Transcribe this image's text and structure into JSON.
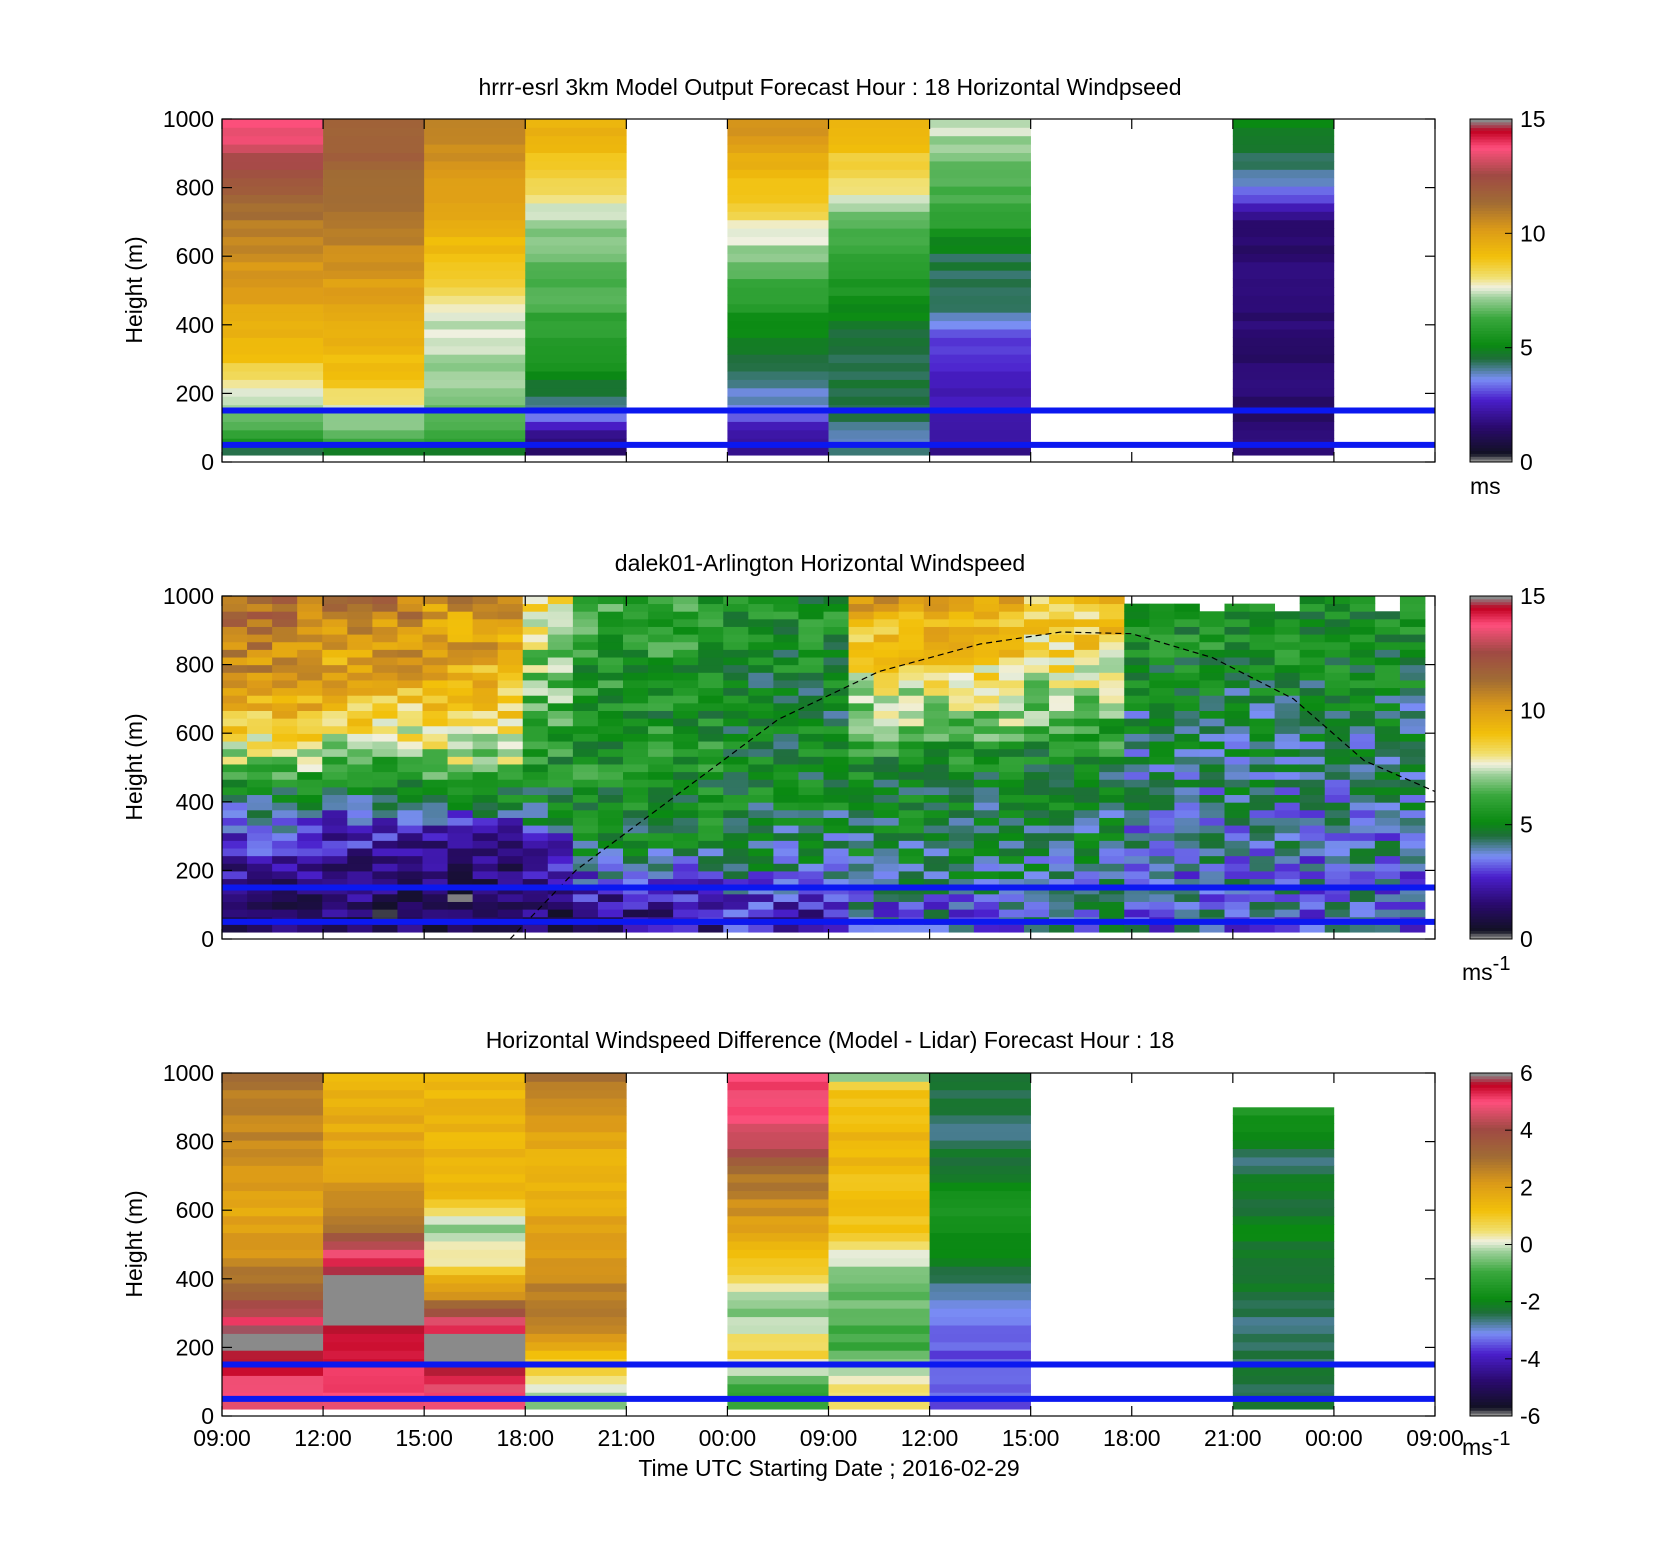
{
  "x_ticks": [
    "09:00",
    "12:00",
    "15:00",
    "18:00",
    "21:00",
    "00:00",
    "09:00",
    "12:00",
    "15:00",
    "18:00",
    "21:00",
    "00:00",
    "09:00"
  ],
  "x_label": "Time UTC  Starting Date ; 2016-02-29",
  "panels": [
    {
      "title": "hrrr-esrl 3km Model Output   Forecast Hour : 18 Horizontal Windpseed",
      "ylabel": "Height (m)",
      "unit_base": "ms",
      "unit_sup": "",
      "colorbar_ticks": [
        "15",
        "10",
        "5",
        "0"
      ]
    },
    {
      "title": "dalek01-Arlington  Horizontal Windspeed",
      "ylabel": "Height (m)",
      "unit_base": "ms",
      "unit_sup": "-1",
      "colorbar_ticks": [
        "15",
        "10",
        "5",
        "0"
      ]
    },
    {
      "title": "Horizontal Windspeed Difference (Model - Lidar) Forecast Hour : 18",
      "ylabel": "Height (m)",
      "unit_base": "ms",
      "unit_sup": "-1",
      "colorbar_ticks": [
        "6",
        "4",
        "2",
        "0",
        "-2",
        "-4",
        "-6"
      ]
    }
  ],
  "chart_data": [
    {
      "type": "heatmap",
      "title": "hrrr-esrl 3km Model Output   Forecast Hour : 18 Horizontal Windpseed",
      "ylabel": "Height (m)",
      "ylim": [
        0,
        1000
      ],
      "clim": [
        0,
        15
      ],
      "y_ticks": [
        0,
        200,
        400,
        600,
        800,
        1000
      ],
      "colorbar_ticks": [
        0,
        5,
        10,
        15
      ],
      "reference_lines_m": [
        150,
        50
      ],
      "columns": [
        {
          "slot": 0,
          "profile": [
            [
              30,
              4.5
            ],
            [
              60,
              5.5
            ],
            [
              100,
              6.5
            ],
            [
              200,
              7.5
            ],
            [
              300,
              9
            ],
            [
              500,
              10
            ],
            [
              700,
              11
            ],
            [
              800,
              12
            ],
            [
              900,
              13
            ],
            [
              1000,
              14
            ]
          ]
        },
        {
          "slot": 1,
          "profile": [
            [
              30,
              4.5
            ],
            [
              60,
              6.5
            ],
            [
              150,
              7.5
            ],
            [
              250,
              9
            ],
            [
              400,
              9.5
            ],
            [
              600,
              10.5
            ],
            [
              800,
              11.5
            ],
            [
              1000,
              12
            ]
          ]
        },
        {
          "slot": 2,
          "profile": [
            [
              30,
              4.5
            ],
            [
              60,
              6
            ],
            [
              200,
              7
            ],
            [
              400,
              7.5
            ],
            [
              500,
              8.5
            ],
            [
              600,
              9
            ],
            [
              800,
              10
            ],
            [
              1000,
              11
            ]
          ]
        },
        {
          "slot": 3,
          "profile": [
            [
              20,
              1
            ],
            [
              80,
              2
            ],
            [
              150,
              4
            ],
            [
              300,
              5.5
            ],
            [
              500,
              6.5
            ],
            [
              700,
              7
            ],
            [
              800,
              8.5
            ],
            [
              1000,
              9.5
            ]
          ]
        },
        {
          "slot": 5,
          "profile": [
            [
              40,
              2
            ],
            [
              100,
              2.5
            ],
            [
              150,
              3.5
            ],
            [
              300,
              4.5
            ],
            [
              500,
              6
            ],
            [
              600,
              7
            ],
            [
              800,
              9
            ],
            [
              1000,
              10.5
            ]
          ]
        },
        {
          "slot": 6,
          "profile": [
            [
              60,
              4
            ],
            [
              150,
              4.5
            ],
            [
              350,
              4.5
            ],
            [
              500,
              5.5
            ],
            [
              700,
              6.5
            ],
            [
              800,
              8
            ],
            [
              1000,
              9.5
            ]
          ]
        },
        {
          "slot": 7,
          "profile": [
            [
              60,
              2
            ],
            [
              350,
              3
            ],
            [
              420,
              4
            ],
            [
              600,
              4.5
            ],
            [
              700,
              6
            ],
            [
              800,
              6.5
            ],
            [
              1000,
              7.5
            ]
          ]
        },
        {
          "slot": 10,
          "profile": [
            [
              700,
              1.5
            ],
            [
              800,
              3.5
            ],
            [
              900,
              4.5
            ],
            [
              1000,
              5
            ]
          ]
        }
      ]
    },
    {
      "type": "heatmap",
      "title": "dalek01-Arlington  Horizontal Windspeed",
      "ylabel": "Height (m)",
      "ylim": [
        0,
        1000
      ],
      "clim": [
        0,
        15
      ],
      "y_ticks": [
        0,
        200,
        400,
        600,
        800,
        1000
      ],
      "colorbar_ticks": [
        0,
        5,
        10,
        15
      ],
      "reference_lines_m": [
        150,
        50
      ],
      "boundary_layer_curve": {
        "style": "dashed",
        "points_slot_m": [
          [
            2.85,
            0
          ],
          [
            3.5,
            200
          ],
          [
            4.5,
            420
          ],
          [
            5.5,
            640
          ],
          [
            6.5,
            780
          ],
          [
            7.5,
            860
          ],
          [
            8.3,
            895
          ],
          [
            9.0,
            890
          ],
          [
            9.8,
            820
          ],
          [
            10.6,
            700
          ],
          [
            11.3,
            520
          ],
          [
            12.0,
            430
          ]
        ]
      },
      "regions": [
        {
          "slots": [
            0,
            1
          ],
          "profile": [
            [
              100,
              1.5
            ],
            [
              250,
              2.5
            ],
            [
              350,
              3.5
            ],
            [
              420,
              5
            ],
            [
              520,
              7
            ],
            [
              650,
              9
            ],
            [
              800,
              10.5
            ],
            [
              1000,
              11.5
            ]
          ]
        },
        {
          "slots": [
            1,
            2
          ],
          "profile": [
            [
              100,
              1.2
            ],
            [
              250,
              2
            ],
            [
              350,
              3
            ],
            [
              450,
              5
            ],
            [
              600,
              8
            ],
            [
              750,
              9.5
            ],
            [
              1000,
              11
            ]
          ]
        },
        {
          "slots": [
            2,
            2.9
          ],
          "profile": [
            [
              100,
              1
            ],
            [
              300,
              2
            ],
            [
              380,
              4
            ],
            [
              500,
              7
            ],
            [
              650,
              8.5
            ],
            [
              800,
              9.5
            ],
            [
              1000,
              10.5
            ]
          ]
        },
        {
          "slots": [
            2.9,
            3.4
          ],
          "profile": [
            [
              100,
              1.5
            ],
            [
              250,
              2.5
            ],
            [
              400,
              5
            ],
            [
              600,
              6
            ],
            [
              800,
              7
            ],
            [
              1000,
              8
            ]
          ]
        },
        {
          "slots": [
            3.4,
            5
          ],
          "profile": [
            [
              100,
              2
            ],
            [
              200,
              3.5
            ],
            [
              300,
              5
            ],
            [
              500,
              5.5
            ],
            [
              700,
              5.5
            ],
            [
              1000,
              6
            ]
          ]
        },
        {
          "slots": [
            5,
            6.2
          ],
          "profile": [
            [
              100,
              2.5
            ],
            [
              200,
              4
            ],
            [
              400,
              5
            ],
            [
              700,
              5
            ],
            [
              1000,
              5.5
            ]
          ]
        },
        {
          "slots": [
            6.2,
            8
          ],
          "profile": [
            [
              100,
              3.5
            ],
            [
              200,
              4.5
            ],
            [
              500,
              5
            ],
            [
              650,
              7
            ],
            [
              800,
              8.5
            ],
            [
              1000,
              10
            ]
          ]
        },
        {
          "slots": [
            8,
            9
          ],
          "profile": [
            [
              100,
              4
            ],
            [
              300,
              4.5
            ],
            [
              500,
              5
            ],
            [
              700,
              7
            ],
            [
              850,
              8.5
            ],
            [
              1000,
              9
            ]
          ]
        },
        {
          "slots": [
            9,
            12
          ],
          "profile": [
            [
              100,
              3.5
            ],
            [
              400,
              4
            ],
            [
              650,
              4.5
            ],
            [
              900,
              5.5
            ],
            [
              1000,
              5.5
            ]
          ]
        }
      ]
    },
    {
      "type": "heatmap",
      "title": "Horizontal Windspeed Difference (Model - Lidar) Forecast Hour : 18",
      "ylabel": "Height (m)",
      "xlabel": "Time UTC  Starting Date ; 2016-02-29",
      "ylim": [
        0,
        1000
      ],
      "clim": [
        -6,
        6
      ],
      "y_ticks": [
        0,
        200,
        400,
        600,
        800,
        1000
      ],
      "colorbar_ticks": [
        -6,
        -4,
        -2,
        0,
        2,
        4,
        6
      ],
      "reference_lines_m": [
        150,
        50
      ],
      "columns": [
        {
          "slot": 0,
          "profile": [
            [
              100,
              5
            ],
            [
              240,
              6.5
            ],
            [
              300,
              4.5
            ],
            [
              350,
              3.5
            ],
            [
              450,
              2.5
            ],
            [
              600,
              1.8
            ],
            [
              800,
              2.5
            ],
            [
              1000,
              3
            ]
          ]
        },
        {
          "slot": 1,
          "profile": [
            [
              80,
              5
            ],
            [
              380,
              6.5
            ],
            [
              460,
              5
            ],
            [
              550,
              3
            ],
            [
              700,
              2
            ],
            [
              1000,
              1.5
            ]
          ]
        },
        {
          "slot": 2,
          "profile": [
            [
              80,
              5
            ],
            [
              210,
              6.5
            ],
            [
              280,
              4.5
            ],
            [
              350,
              2.5
            ],
            [
              450,
              0.5
            ],
            [
              550,
              -0.5
            ],
            [
              650,
              1.5
            ],
            [
              1000,
              1.5
            ]
          ]
        },
        {
          "slot": 3,
          "profile": [
            [
              50,
              -0.5
            ],
            [
              150,
              1
            ],
            [
              300,
              3
            ],
            [
              500,
              2
            ],
            [
              750,
              1.5
            ],
            [
              900,
              2.5
            ],
            [
              1000,
              3
            ]
          ]
        },
        {
          "slot": 5,
          "profile": [
            [
              100,
              -1
            ],
            [
              180,
              1
            ],
            [
              300,
              -0.5
            ],
            [
              400,
              0.5
            ],
            [
              550,
              2
            ],
            [
              700,
              3
            ],
            [
              800,
              4.5
            ],
            [
              900,
              5
            ],
            [
              1000,
              5
            ]
          ]
        },
        {
          "slot": 6,
          "profile": [
            [
              100,
              0.5
            ],
            [
              200,
              -1
            ],
            [
              400,
              -0.5
            ],
            [
              550,
              1
            ],
            [
              800,
              1.5
            ],
            [
              950,
              1
            ],
            [
              1000,
              -0.5
            ]
          ]
        },
        {
          "slot": 7,
          "profile": [
            [
              200,
              -3.5
            ],
            [
              400,
              -2.5
            ],
            [
              600,
              -1.5
            ],
            [
              800,
              -2.5
            ],
            [
              1000,
              -2.5
            ]
          ]
        },
        {
          "slot": 10,
          "profile": [
            [
              300,
              -2.5
            ],
            [
              550,
              -2
            ],
            [
              750,
              -2.5
            ],
            [
              900,
              -1.5
            ]
          ]
        }
      ]
    }
  ]
}
